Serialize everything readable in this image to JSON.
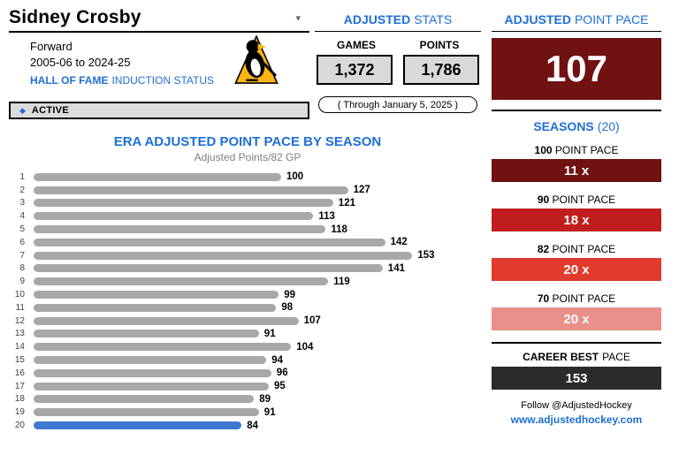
{
  "player": {
    "name": "Sidney Crosby",
    "position": "Forward",
    "season_range": "2005-06 to 2024-25",
    "hof_bold": "HALL OF FAME",
    "hof_rest": "INDUCTION STATUS",
    "status_label": "ACTIVE"
  },
  "adjusted_stats": {
    "title_bold": "ADJUSTED",
    "title_rest": "STATS",
    "games_label": "GAMES",
    "games_value": "1,372",
    "points_label": "POINTS",
    "points_value": "1,786",
    "through_note": "( Through January 5, 2025 )"
  },
  "point_pace": {
    "title_bold": "ADJUSTED",
    "title_rest": "POINT PACE",
    "value": "107",
    "value_box_color": "#701112",
    "seasons_label": "SEASONS",
    "seasons_count": "(20)",
    "tiles": [
      {
        "label_bold": "100",
        "label_rest": "POINT PACE",
        "value": "11 x",
        "color": "#701112"
      },
      {
        "label_bold": "90",
        "label_rest": "POINT PACE",
        "value": "18 x",
        "color": "#c01e1e"
      },
      {
        "label_bold": "82",
        "label_rest": "POINT PACE",
        "value": "20 x",
        "color": "#e23a2e"
      },
      {
        "label_bold": "70",
        "label_rest": "POINT PACE",
        "value": "20 x",
        "color": "#e89089"
      }
    ],
    "career_bold": "CAREER BEST",
    "career_rest": "PACE",
    "career_value": "153",
    "career_color": "#2b2b2b",
    "follow_text": "Follow @AdjustedHockey",
    "website": "www.adjustedhockey.com"
  },
  "ui_icons": {
    "dropdown": "▾",
    "diamond": "◆"
  },
  "colors": {
    "accent_blue": "#1d6fd8"
  },
  "chart_data": {
    "type": "bar",
    "orientation": "horizontal",
    "title": "ERA ADJUSTED POINT PACE BY SEASON",
    "subtitle": "Adjusted Points/82 GP",
    "categories": [
      "1",
      "2",
      "3",
      "4",
      "5",
      "6",
      "7",
      "8",
      "9",
      "10",
      "11",
      "12",
      "13",
      "14",
      "15",
      "16",
      "17",
      "18",
      "19",
      "20"
    ],
    "values": [
      100,
      127,
      121,
      113,
      118,
      142,
      153,
      141,
      119,
      99,
      98,
      107,
      91,
      104,
      94,
      96,
      95,
      89,
      91,
      84
    ],
    "highlight_index": 19,
    "bar_color": "#a8a8a8",
    "highlight_color": "#4078d0",
    "xmax": 160,
    "legend": "none",
    "grid": false
  }
}
